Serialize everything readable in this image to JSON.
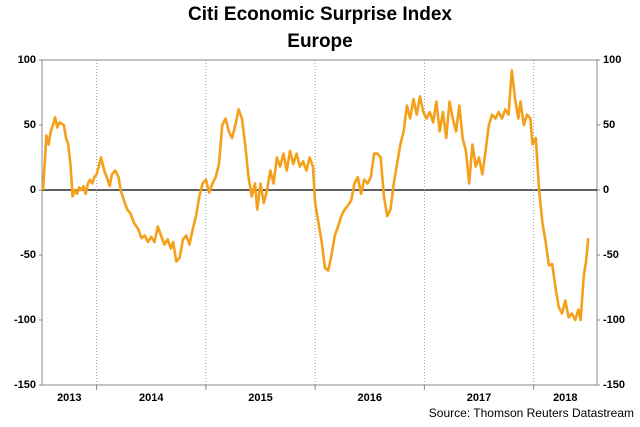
{
  "chart_data": {
    "type": "line",
    "title": "Citi Economic Surprise Index",
    "subtitle": "Europe",
    "source": "Source: Thomson Reuters Datastream",
    "color": "#f5a01a",
    "zero_line": true,
    "grid": true,
    "xlim": [
      2013.5,
      2018.58
    ],
    "xticks": [
      2014,
      2015,
      2016,
      2017,
      2018
    ],
    "xlabels": [
      "2013",
      "2014",
      "2015",
      "2016",
      "2017",
      "2018"
    ],
    "ylim": [
      -150,
      100
    ],
    "yticks": [
      -150,
      -100,
      -50,
      0,
      50,
      100
    ],
    "x": [
      2013.51,
      2013.54,
      2013.56,
      2013.58,
      2013.6,
      2013.62,
      2013.64,
      2013.66,
      2013.68,
      2013.7,
      2013.72,
      2013.74,
      2013.76,
      2013.78,
      2013.8,
      2013.82,
      2013.84,
      2013.86,
      2013.88,
      2013.9,
      2013.92,
      2013.94,
      2013.96,
      2013.98,
      2014.0,
      2014.04,
      2014.07,
      2014.1,
      2014.12,
      2014.14,
      2014.17,
      2014.2,
      2014.22,
      2014.25,
      2014.28,
      2014.31,
      2014.34,
      2014.38,
      2014.41,
      2014.44,
      2014.47,
      2014.5,
      2014.53,
      2014.56,
      2014.59,
      2014.62,
      2014.65,
      2014.68,
      2014.7,
      2014.73,
      2014.76,
      2014.79,
      2014.82,
      2014.85,
      2014.88,
      2014.91,
      2014.94,
      2014.97,
      2015.0,
      2015.03,
      2015.06,
      2015.09,
      2015.12,
      2015.15,
      2015.18,
      2015.21,
      2015.24,
      2015.27,
      2015.3,
      2015.33,
      2015.36,
      2015.39,
      2015.42,
      2015.45,
      2015.47,
      2015.5,
      2015.53,
      2015.56,
      2015.59,
      2015.62,
      2015.65,
      2015.68,
      2015.71,
      2015.74,
      2015.77,
      2015.8,
      2015.83,
      2015.86,
      2015.89,
      2015.92,
      2015.95,
      2015.98,
      2016.0,
      2016.03,
      2016.06,
      2016.09,
      2016.12,
      2016.15,
      2016.18,
      2016.21,
      2016.24,
      2016.27,
      2016.3,
      2016.33,
      2016.36,
      2016.39,
      2016.42,
      2016.45,
      2016.48,
      2016.51,
      2016.54,
      2016.57,
      2016.6,
      2016.63,
      2016.66,
      2016.69,
      2016.72,
      2016.75,
      2016.78,
      2016.81,
      2016.84,
      2016.87,
      2016.9,
      2016.93,
      2016.96,
      2016.99,
      2017.02,
      2017.05,
      2017.08,
      2017.11,
      2017.14,
      2017.17,
      2017.2,
      2017.23,
      2017.26,
      2017.29,
      2017.32,
      2017.35,
      2017.38,
      2017.41,
      2017.44,
      2017.47,
      2017.5,
      2017.53,
      2017.56,
      2017.59,
      2017.62,
      2017.65,
      2017.68,
      2017.71,
      2017.74,
      2017.77,
      2017.8,
      2017.83,
      2017.86,
      2017.88,
      2017.91,
      2017.94,
      2017.97,
      2017.99,
      2018.02,
      2018.05,
      2018.08,
      2018.11,
      2018.14,
      2018.17,
      2018.2,
      2018.23,
      2018.26,
      2018.29,
      2018.32,
      2018.35,
      2018.38,
      2018.41,
      2018.43,
      2018.46,
      2018.48,
      2018.5
    ],
    "values": [
      0,
      42,
      35,
      45,
      50,
      56,
      48,
      52,
      51,
      50,
      40,
      35,
      20,
      -5,
      0,
      -3,
      2,
      0,
      3,
      -3,
      5,
      8,
      5,
      10,
      12,
      25,
      15,
      8,
      3,
      12,
      15,
      10,
      0,
      -8,
      -15,
      -18,
      -25,
      -30,
      -37,
      -35,
      -40,
      -36,
      -40,
      -28,
      -35,
      -42,
      -38,
      -45,
      -40,
      -55,
      -52,
      -38,
      -35,
      -42,
      -30,
      -20,
      -5,
      5,
      8,
      -2,
      5,
      10,
      20,
      50,
      55,
      45,
      40,
      50,
      62,
      55,
      35,
      10,
      -5,
      5,
      -15,
      5,
      -10,
      0,
      15,
      5,
      25,
      18,
      28,
      15,
      30,
      20,
      28,
      18,
      22,
      15,
      25,
      18,
      -10,
      -25,
      -40,
      -60,
      -62,
      -50,
      -35,
      -28,
      -20,
      -15,
      -12,
      -8,
      5,
      10,
      -3,
      8,
      5,
      10,
      28,
      28,
      25,
      -5,
      -20,
      -15,
      5,
      20,
      35,
      45,
      65,
      55,
      70,
      58,
      72,
      60,
      55,
      60,
      52,
      68,
      45,
      60,
      40,
      68,
      55,
      45,
      65,
      40,
      30,
      5,
      35,
      18,
      25,
      12,
      30,
      50,
      58,
      55,
      60,
      55,
      62,
      58,
      92,
      70,
      55,
      68,
      50,
      58,
      55,
      35,
      40,
      0,
      -25,
      -40,
      -58,
      -57,
      -75,
      -90,
      -95,
      -85,
      -98,
      -95,
      -100,
      -92,
      -100,
      -65,
      -55,
      -37
    ]
  }
}
